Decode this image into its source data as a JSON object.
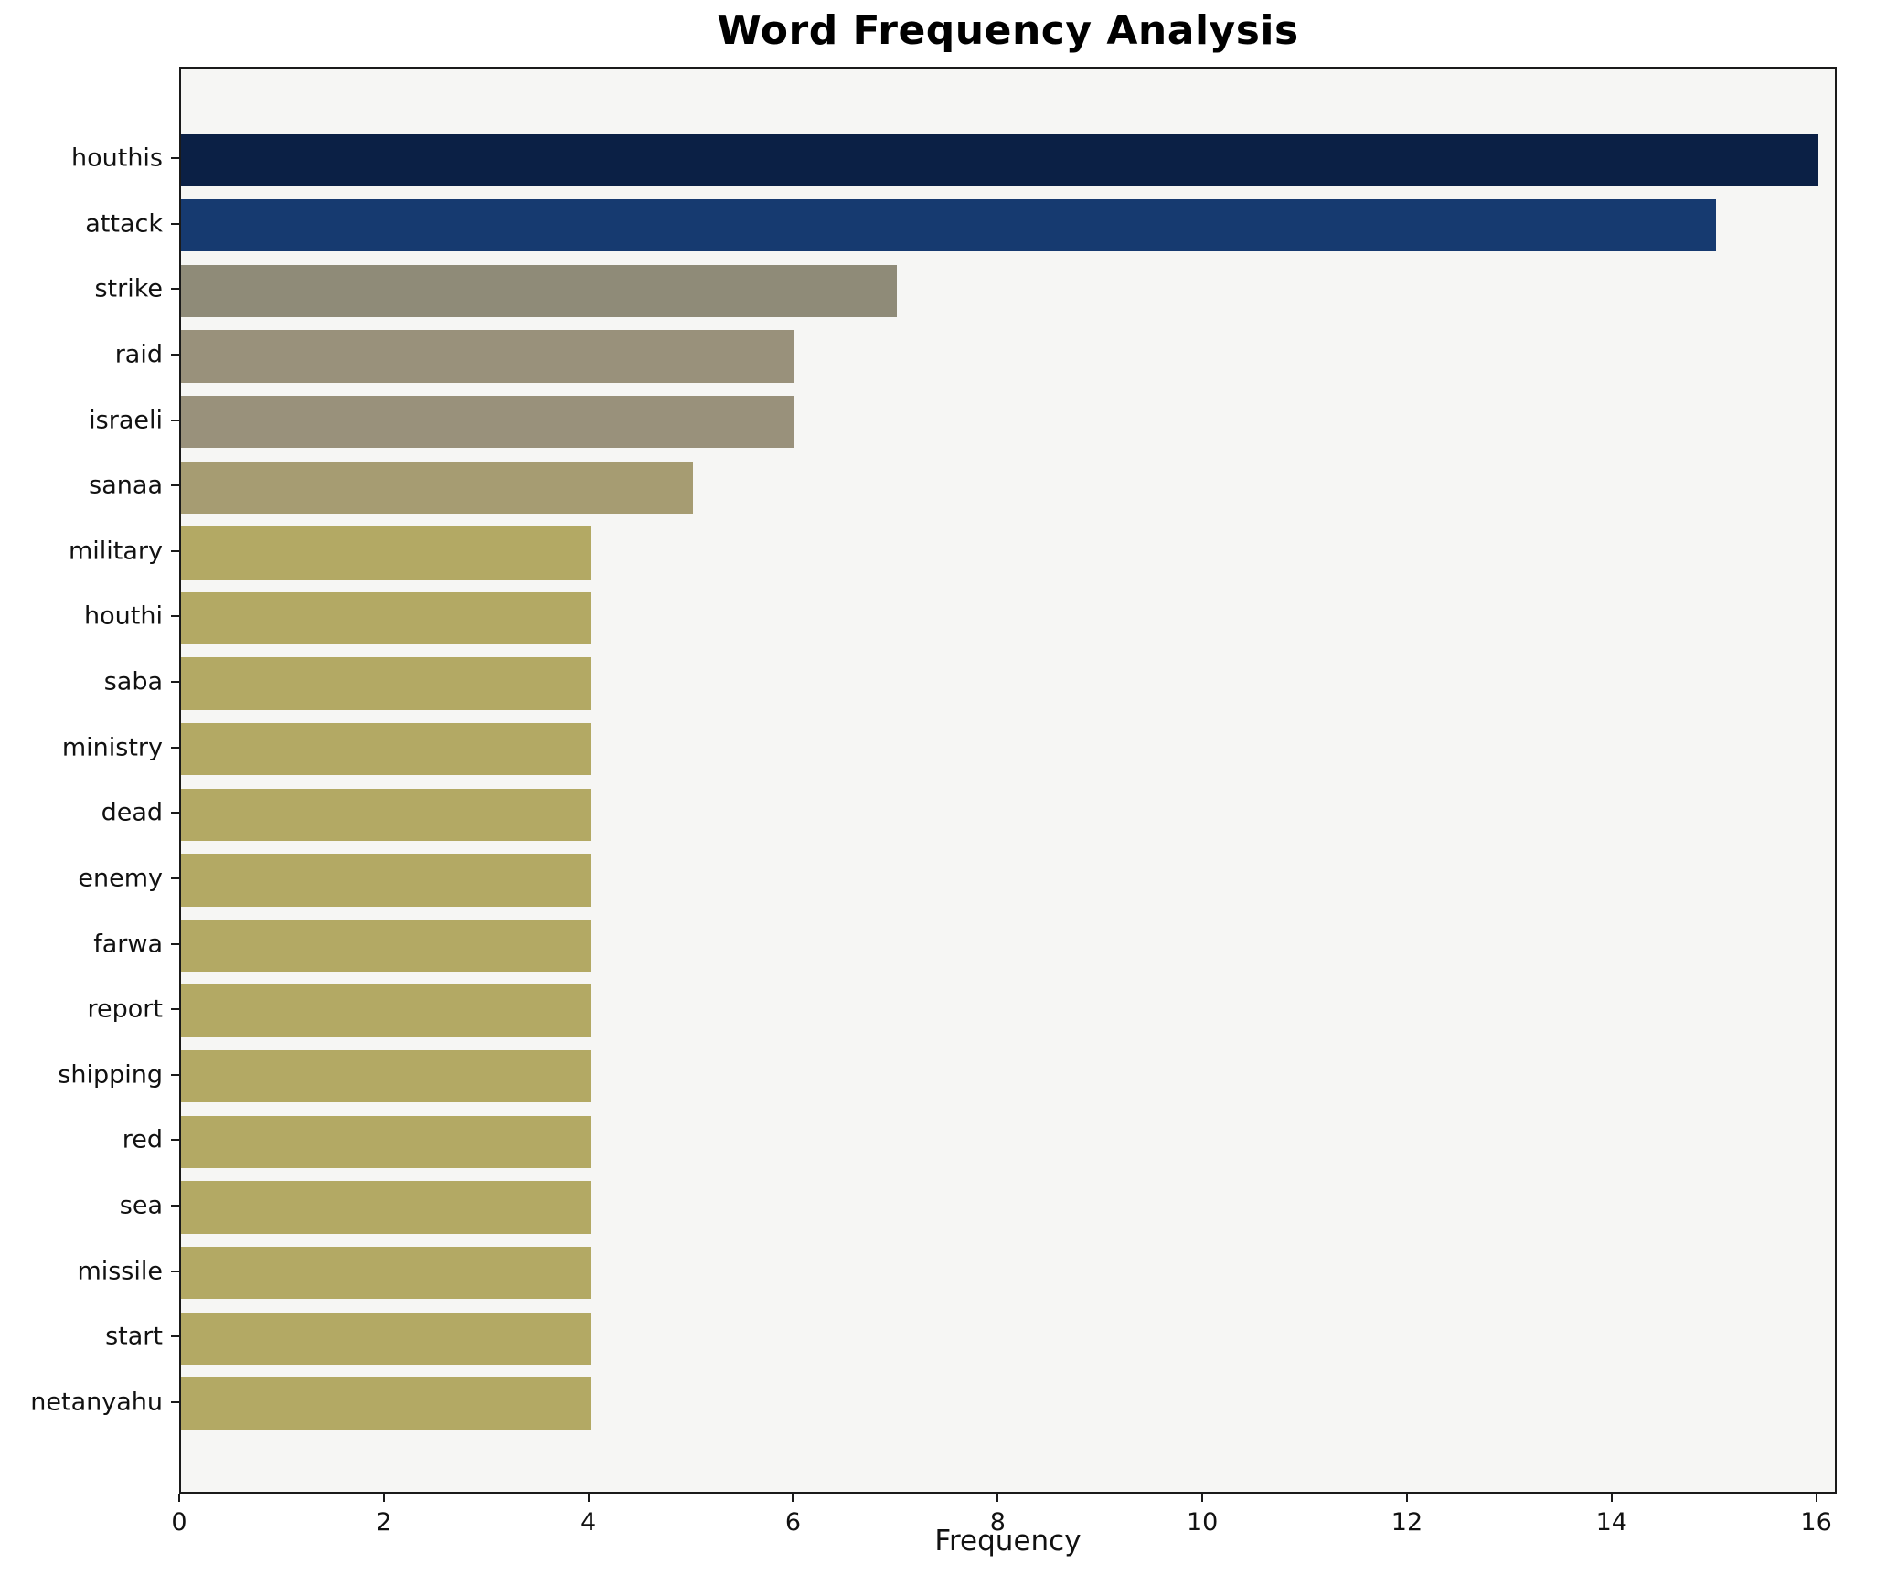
{
  "chart_data": {
    "type": "bar",
    "orientation": "horizontal",
    "title": "Word Frequency Analysis",
    "xlabel": "Frequency",
    "ylabel": "",
    "grid": false,
    "legend": false,
    "plot_bg": "#f6f6f4",
    "xlim": [
      0,
      16.2
    ],
    "xticks": [
      0,
      2,
      4,
      6,
      8,
      10,
      12,
      14,
      16
    ],
    "categories": [
      "houthis",
      "attack",
      "strike",
      "raid",
      "israeli",
      "sanaa",
      "military",
      "houthi",
      "saba",
      "ministry",
      "dead",
      "enemy",
      "farwa",
      "report",
      "shipping",
      "red",
      "sea",
      "missile",
      "start",
      "netanyahu"
    ],
    "values": [
      16,
      15,
      7,
      6,
      6,
      5,
      4,
      4,
      4,
      4,
      4,
      4,
      4,
      4,
      4,
      4,
      4,
      4,
      4,
      4
    ],
    "colors": [
      "#0b2045",
      "#163a70",
      "#8f8b78",
      "#99917b",
      "#99917b",
      "#a69c72",
      "#b3a964",
      "#b3a964",
      "#b3a964",
      "#b3a964",
      "#b3a964",
      "#b3a964",
      "#b3a964",
      "#b3a964",
      "#b3a964",
      "#b3a964",
      "#b3a964",
      "#b3a964",
      "#b3a964",
      "#b3a964"
    ]
  }
}
